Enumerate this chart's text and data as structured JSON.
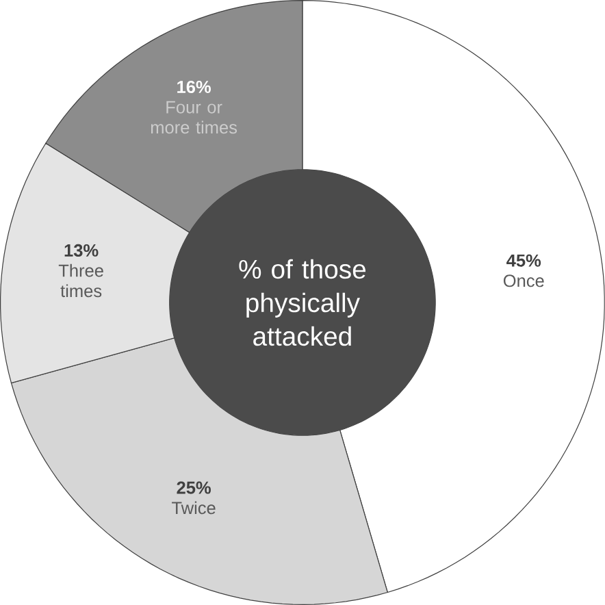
{
  "chart_data": {
    "type": "donut",
    "title": "% of those physically attacked",
    "categories": [
      "Once",
      "Twice",
      "Three times",
      "Four or more times"
    ],
    "values": [
      45,
      25,
      13,
      16
    ],
    "colors": [
      "#ffffff",
      "#d6d6d6",
      "#e4e4e4",
      "#8c8c8c"
    ],
    "value_labels": [
      "45%",
      "25%",
      "13%",
      "16%"
    ]
  }
}
